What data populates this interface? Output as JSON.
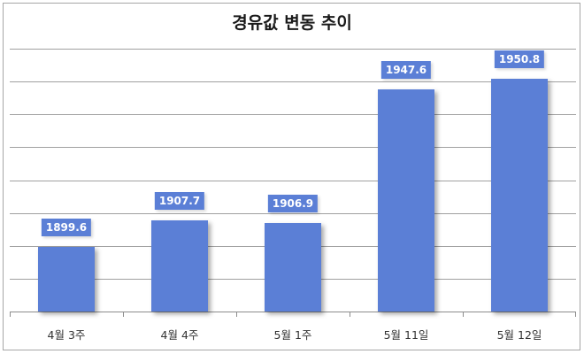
{
  "chart_data": {
    "type": "bar",
    "title": "경유값 변동 추이",
    "categories": [
      "4월 3주",
      "4월 4주",
      "5월 1주",
      "5월 11일",
      "5월 12일"
    ],
    "values": [
      1899.6,
      1907.7,
      1906.9,
      1947.6,
      1950.8
    ],
    "value_labels": [
      "1899.6",
      "1907.7",
      "1906.9",
      "1947.6",
      "1950.8"
    ],
    "xlabel": "",
    "ylabel": "",
    "ylim": [
      1880,
      1960
    ],
    "grid": true,
    "grid_step": 10,
    "legend": null,
    "bar_color": "#5b7fd6"
  }
}
